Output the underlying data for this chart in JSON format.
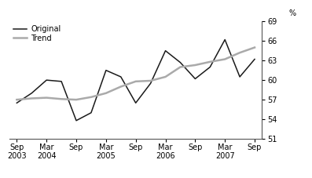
{
  "original_x": [
    0,
    1,
    2,
    3,
    4,
    5,
    6,
    7,
    8,
    9,
    10,
    11,
    12,
    13,
    14,
    15,
    16
  ],
  "original_y": [
    56.5,
    58.0,
    60.0,
    59.8,
    53.8,
    55.0,
    61.5,
    60.5,
    56.5,
    59.5,
    64.5,
    62.7,
    60.2,
    62.0,
    66.2,
    60.5,
    63.2
  ],
  "trend_x": [
    0,
    1,
    2,
    3,
    4,
    5,
    6,
    7,
    8,
    9,
    10,
    11,
    12,
    13,
    14,
    15,
    16
  ],
  "trend_y": [
    57.0,
    57.2,
    57.3,
    57.1,
    57.0,
    57.4,
    58.0,
    59.0,
    59.8,
    59.9,
    60.5,
    62.0,
    62.3,
    62.8,
    63.2,
    64.2,
    65.0
  ],
  "original_color": "#1a1a1a",
  "trend_color": "#aaaaaa",
  "ylim": [
    51,
    69
  ],
  "yticks": [
    51,
    54,
    57,
    60,
    63,
    66,
    69
  ],
  "ylabel": "%",
  "background_color": "#ffffff",
  "legend_original": "Original",
  "legend_trend": "Trend",
  "original_lw": 1.1,
  "trend_lw": 1.8,
  "tick_positions": [
    0,
    2,
    4,
    6,
    8,
    10,
    12,
    14,
    16
  ],
  "tick_labels": [
    "Sep\n2003",
    "Mar\n2004",
    "Sep",
    "Mar\n2005",
    "Sep",
    "Mar\n2006",
    "Sep",
    "Mar\n2007",
    "Sep"
  ]
}
